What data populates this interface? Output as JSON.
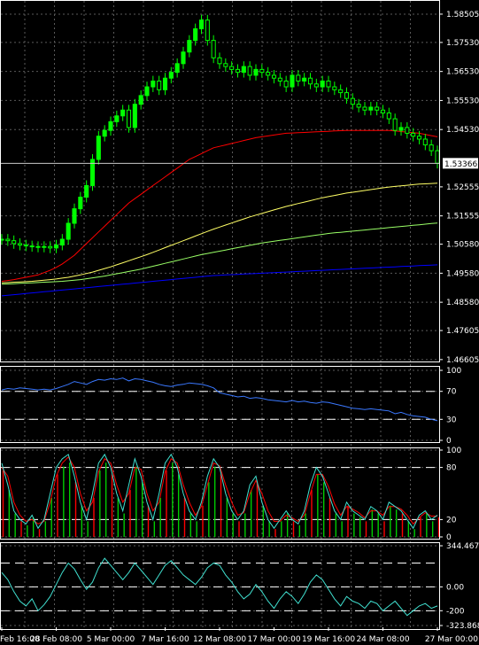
{
  "colors": {
    "background": "#000000",
    "grid": "#5a5a5a",
    "axis": "#ffffff",
    "candle_up": "#00ff00",
    "candle_down": "#00ff00",
    "ma_red": "#ff0000",
    "ma_yellow": "#ffff66",
    "ma_green": "#99ff66",
    "ma_blue": "#0000ff",
    "rsi": "#3a78ff",
    "stoch_main": "#40e0d0",
    "stoch_signal": "#ff0000",
    "hist_green": "#00cc00",
    "hist_red": "#ff0000",
    "cci": "#40e0d0"
  },
  "chart_data": [
    {
      "type": "line",
      "panel": "main",
      "ylim": [
        1.466,
        1.5887
      ],
      "y_ticks": [
        "1.58505",
        "1.57530",
        "1.56530",
        "1.55530",
        "1.54530",
        "1.52555",
        "1.51555",
        "1.50580",
        "1.49580",
        "1.48580",
        "1.47605",
        "1.46605"
      ],
      "y_tick_values": [
        1.58505,
        1.5753,
        1.5653,
        1.5553,
        1.5453,
        1.52555,
        1.51555,
        1.5058,
        1.4958,
        1.4858,
        1.47605,
        1.46605
      ],
      "current_price": "1.53366",
      "current_price_value": 1.53366,
      "x_labels": [
        "Feb 16:00",
        "28 Feb 08:00",
        "5 Mar 00:00",
        "7 Mar 16:00",
        "12 Mar 08:00",
        "17 Mar 00:00",
        "19 Mar 16:00",
        "24 Mar 08:00",
        "27 Mar 00:00"
      ],
      "x_label_positions": [
        0,
        9,
        18,
        27,
        36,
        45,
        54,
        63,
        72
      ],
      "x_count": 73,
      "series": [
        {
          "key": "price",
          "values": [
            1.5075,
            1.507,
            1.506,
            1.5055,
            1.5052,
            1.505,
            1.5048,
            1.505,
            1.5045,
            1.5055,
            1.5075,
            1.513,
            1.518,
            1.522,
            1.526,
            1.535,
            1.543,
            1.545,
            1.548,
            1.55,
            1.552,
            1.546,
            1.554,
            1.557,
            1.56,
            1.562,
            1.559,
            1.563,
            1.565,
            1.568,
            1.572,
            1.576,
            1.58,
            1.583,
            1.576,
            1.57,
            1.568,
            1.567,
            1.566,
            1.565,
            1.567,
            1.564,
            1.566,
            1.565,
            1.564,
            1.563,
            1.562,
            1.56,
            1.564,
            1.562,
            1.563,
            1.561,
            1.56,
            1.562,
            1.56,
            1.559,
            1.558,
            1.556,
            1.554,
            1.553,
            1.552,
            1.553,
            1.552,
            1.551,
            1.549,
            1.545,
            1.546,
            1.544,
            1.543,
            1.542,
            1.54,
            1.538,
            1.5337
          ]
        },
        {
          "key": "ma_red",
          "values": [
            1.493,
            1.4933,
            1.4936,
            1.494,
            1.4944,
            1.4948,
            1.4952,
            1.496,
            1.4968,
            1.4978,
            1.499,
            1.5005,
            1.502,
            1.504,
            1.506,
            1.508,
            1.51,
            1.512,
            1.514,
            1.516,
            1.518,
            1.52,
            1.5215,
            1.523,
            1.5245,
            1.526,
            1.5275,
            1.529,
            1.5305,
            1.532,
            1.5335,
            1.535,
            1.536,
            1.537,
            1.538,
            1.539,
            1.5395,
            1.54,
            1.5405,
            1.541,
            1.5415,
            1.542,
            1.5425,
            1.5428,
            1.5431,
            1.5434,
            1.5437,
            1.544,
            1.5441,
            1.5442,
            1.5443,
            1.5444,
            1.5445,
            1.5446,
            1.5447,
            1.5448,
            1.5449,
            1.545,
            1.545,
            1.545,
            1.545,
            1.545,
            1.545,
            1.545,
            1.545,
            1.5448,
            1.5446,
            1.5444,
            1.5442,
            1.544,
            1.5436,
            1.5432,
            1.5428
          ]
        },
        {
          "key": "ma_yellow",
          "values": [
            1.4925,
            1.4926,
            1.4927,
            1.4928,
            1.4929,
            1.493,
            1.4932,
            1.4934,
            1.4936,
            1.4938,
            1.4941,
            1.4944,
            1.4948,
            1.4952,
            1.4957,
            1.4962,
            1.4968,
            1.4974,
            1.498,
            1.4987,
            1.4994,
            1.5001,
            1.5008,
            1.5015,
            1.5022,
            1.503,
            1.5038,
            1.5046,
            1.5054,
            1.5062,
            1.507,
            1.5078,
            1.5086,
            1.5094,
            1.5102,
            1.511,
            1.5117,
            1.5124,
            1.5131,
            1.5138,
            1.5145,
            1.5152,
            1.5158,
            1.5164,
            1.517,
            1.5176,
            1.5182,
            1.5188,
            1.5193,
            1.5198,
            1.5203,
            1.5208,
            1.5213,
            1.5218,
            1.5222,
            1.5226,
            1.523,
            1.5234,
            1.5237,
            1.524,
            1.5243,
            1.5246,
            1.5249,
            1.5252,
            1.5255,
            1.5257,
            1.5259,
            1.5261,
            1.5263,
            1.5265,
            1.5266,
            1.5267,
            1.5268
          ]
        },
        {
          "key": "ma_green",
          "values": [
            1.492,
            1.4921,
            1.4922,
            1.4923,
            1.4924,
            1.4925,
            1.4926,
            1.4927,
            1.4928,
            1.4929,
            1.493,
            1.4932,
            1.4934,
            1.4936,
            1.4939,
            1.4942,
            1.4945,
            1.4948,
            1.4952,
            1.4956,
            1.496,
            1.4964,
            1.4968,
            1.4972,
            1.4977,
            1.4982,
            1.4987,
            1.4992,
            1.4997,
            1.5002,
            1.5007,
            1.5012,
            1.5017,
            1.5022,
            1.5026,
            1.503,
            1.5034,
            1.5038,
            1.5042,
            1.5046,
            1.505,
            1.5054,
            1.5058,
            1.5062,
            1.5065,
            1.5068,
            1.5071,
            1.5074,
            1.5077,
            1.508,
            1.5083,
            1.5086,
            1.5089,
            1.5092,
            1.5095,
            1.5097,
            1.5099,
            1.5101,
            1.5103,
            1.5105,
            1.5107,
            1.5109,
            1.5111,
            1.5113,
            1.5115,
            1.5117,
            1.5119,
            1.5121,
            1.5123,
            1.5125,
            1.5127,
            1.5129,
            1.5131
          ]
        },
        {
          "key": "ma_blue",
          "values": [
            1.488,
            1.4882,
            1.4884,
            1.4886,
            1.4888,
            1.489,
            1.4892,
            1.4894,
            1.4896,
            1.4898,
            1.49,
            1.4902,
            1.4904,
            1.4906,
            1.4908,
            1.491,
            1.4912,
            1.4914,
            1.4916,
            1.4918,
            1.492,
            1.4922,
            1.4924,
            1.4926,
            1.4928,
            1.493,
            1.4932,
            1.4934,
            1.4936,
            1.4938,
            1.494,
            1.4942,
            1.4944,
            1.4946,
            1.4948,
            1.495,
            1.4951,
            1.4952,
            1.4953,
            1.4954,
            1.4955,
            1.4956,
            1.4957,
            1.4958,
            1.4959,
            1.496,
            1.4961,
            1.4962,
            1.4963,
            1.4964,
            1.4965,
            1.4966,
            1.4967,
            1.4968,
            1.4969,
            1.497,
            1.4971,
            1.4972,
            1.4973,
            1.4974,
            1.4975,
            1.4976,
            1.4977,
            1.4978,
            1.4979,
            1.498,
            1.4981,
            1.4982,
            1.4983,
            1.4984,
            1.4985,
            1.4986,
            1.4987
          ]
        }
      ]
    },
    {
      "type": "line",
      "panel": "rsi",
      "ylim": [
        0,
        100
      ],
      "y_ticks": [
        "100",
        "70",
        "30",
        "0"
      ],
      "y_tick_values": [
        100,
        70,
        30,
        0
      ],
      "levels": [
        70,
        30
      ],
      "series": [
        {
          "key": "rsi",
          "values": [
            72,
            74,
            73,
            75,
            74,
            73,
            72,
            73,
            72,
            74,
            77,
            80,
            84,
            82,
            80,
            84,
            87,
            86,
            88,
            87,
            89,
            85,
            88,
            87,
            85,
            83,
            80,
            78,
            77,
            79,
            80,
            82,
            81,
            80,
            78,
            75,
            68,
            66,
            64,
            62,
            63,
            60,
            61,
            60,
            58,
            57,
            56,
            55,
            57,
            55,
            56,
            54,
            53,
            55,
            54,
            52,
            50,
            48,
            46,
            45,
            44,
            45,
            44,
            43,
            42,
            38,
            40,
            37,
            35,
            34,
            33,
            30,
            28
          ]
        }
      ]
    },
    {
      "type": "line",
      "panel": "stochastic",
      "ylim": [
        0,
        100
      ],
      "y_ticks": [
        "100",
        "80",
        "20",
        "0"
      ],
      "y_tick_values": [
        100,
        80,
        20,
        0
      ],
      "levels": [
        80,
        20
      ],
      "series": [
        {
          "key": "stoch_main",
          "values": [
            85,
            60,
            30,
            20,
            15,
            25,
            10,
            20,
            50,
            80,
            90,
            95,
            70,
            40,
            20,
            50,
            85,
            95,
            80,
            50,
            30,
            60,
            90,
            70,
            40,
            20,
            50,
            85,
            95,
            80,
            50,
            30,
            20,
            40,
            70,
            90,
            80,
            50,
            30,
            20,
            30,
            60,
            70,
            40,
            20,
            10,
            20,
            30,
            20,
            15,
            30,
            60,
            80,
            70,
            50,
            30,
            20,
            40,
            30,
            25,
            20,
            35,
            30,
            20,
            40,
            35,
            30,
            20,
            10,
            25,
            30,
            20,
            25
          ]
        },
        {
          "key": "stoch_signal",
          "values": [
            80,
            70,
            40,
            25,
            18,
            20,
            15,
            18,
            40,
            70,
            85,
            92,
            80,
            50,
            30,
            40,
            75,
            90,
            85,
            60,
            40,
            50,
            80,
            78,
            50,
            30,
            40,
            75,
            90,
            85,
            60,
            40,
            25,
            35,
            60,
            85,
            82,
            60,
            40,
            25,
            28,
            50,
            65,
            50,
            30,
            18,
            18,
            25,
            22,
            18,
            25,
            50,
            72,
            72,
            58,
            38,
            25,
            35,
            32,
            28,
            22,
            30,
            30,
            25,
            35,
            35,
            32,
            25,
            15,
            22,
            28,
            24,
            24
          ]
        }
      ]
    },
    {
      "type": "line",
      "panel": "cci",
      "ylim": [
        -323.8681,
        344.4674
      ],
      "y_ticks": [
        "344.4674",
        "0.00",
        "-200",
        "-323.8681"
      ],
      "y_tick_values": [
        344.4674,
        0,
        -200,
        -323.8681
      ],
      "levels": [
        200,
        0,
        -200
      ],
      "series": [
        {
          "key": "cci",
          "values": [
            120,
            60,
            -40,
            -120,
            -160,
            -100,
            -200,
            -150,
            -80,
            20,
            120,
            200,
            150,
            60,
            -20,
            40,
            160,
            240,
            180,
            120,
            60,
            120,
            200,
            140,
            80,
            20,
            100,
            180,
            220,
            160,
            100,
            60,
            20,
            80,
            160,
            200,
            180,
            100,
            40,
            -40,
            -100,
            -60,
            20,
            -40,
            -120,
            -180,
            -100,
            -40,
            -80,
            -140,
            -60,
            40,
            100,
            60,
            -20,
            -100,
            -160,
            -80,
            -120,
            -140,
            -180,
            -120,
            -140,
            -200,
            -160,
            -120,
            -180,
            -240,
            -200,
            -160,
            -140,
            -180,
            -160
          ]
        }
      ]
    }
  ]
}
